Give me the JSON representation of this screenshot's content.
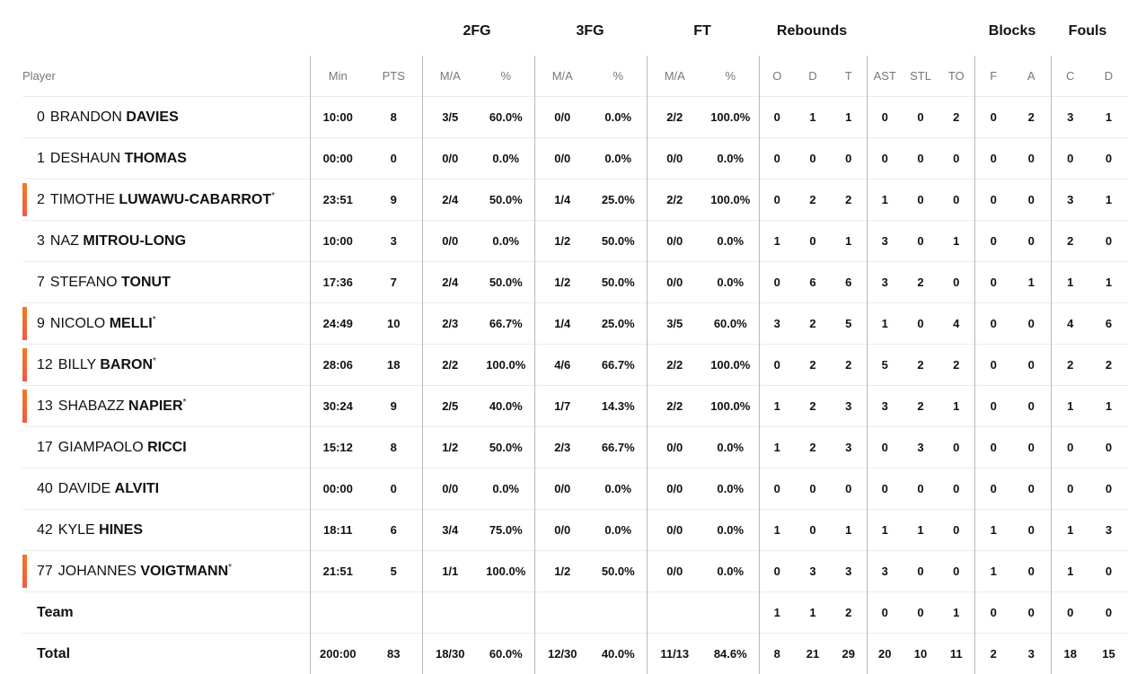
{
  "groups": {
    "fg2": "2FG",
    "fg3": "3FG",
    "ft": "FT",
    "reb": "Rebounds",
    "blk": "Blocks",
    "fouls": "Fouls"
  },
  "columns": [
    "Player",
    "Min",
    "PTS",
    "M/A",
    "%",
    "M/A",
    "%",
    "M/A",
    "%",
    "O",
    "D",
    "T",
    "AST",
    "STL",
    "TO",
    "F",
    "A",
    "C",
    "D"
  ],
  "accent_color": "#f26a30",
  "rows": [
    {
      "num": "0",
      "first": "BRANDON",
      "last": "DAVIES",
      "starter": false,
      "stats": [
        "10:00",
        "8",
        "3/5",
        "60.0%",
        "0/0",
        "0.0%",
        "2/2",
        "100.0%",
        "0",
        "1",
        "1",
        "0",
        "0",
        "2",
        "0",
        "2",
        "3",
        "1"
      ]
    },
    {
      "num": "1",
      "first": "DESHAUN",
      "last": "THOMAS",
      "starter": false,
      "stats": [
        "00:00",
        "0",
        "0/0",
        "0.0%",
        "0/0",
        "0.0%",
        "0/0",
        "0.0%",
        "0",
        "0",
        "0",
        "0",
        "0",
        "0",
        "0",
        "0",
        "0",
        "0"
      ]
    },
    {
      "num": "2",
      "first": "TIMOTHE",
      "last": "LUWAWU-CABARROT",
      "starter": true,
      "stats": [
        "23:51",
        "9",
        "2/4",
        "50.0%",
        "1/4",
        "25.0%",
        "2/2",
        "100.0%",
        "0",
        "2",
        "2",
        "1",
        "0",
        "0",
        "0",
        "0",
        "3",
        "1"
      ]
    },
    {
      "num": "3",
      "first": "NAZ",
      "last": "MITROU-LONG",
      "starter": false,
      "stats": [
        "10:00",
        "3",
        "0/0",
        "0.0%",
        "1/2",
        "50.0%",
        "0/0",
        "0.0%",
        "1",
        "0",
        "1",
        "3",
        "0",
        "1",
        "0",
        "0",
        "2",
        "0"
      ]
    },
    {
      "num": "7",
      "first": "STEFANO",
      "last": "TONUT",
      "starter": false,
      "stats": [
        "17:36",
        "7",
        "2/4",
        "50.0%",
        "1/2",
        "50.0%",
        "0/0",
        "0.0%",
        "0",
        "6",
        "6",
        "3",
        "2",
        "0",
        "0",
        "1",
        "1",
        "1"
      ]
    },
    {
      "num": "9",
      "first": "NICOLO",
      "last": "MELLI",
      "starter": true,
      "stats": [
        "24:49",
        "10",
        "2/3",
        "66.7%",
        "1/4",
        "25.0%",
        "3/5",
        "60.0%",
        "3",
        "2",
        "5",
        "1",
        "0",
        "4",
        "0",
        "0",
        "4",
        "6"
      ]
    },
    {
      "num": "12",
      "first": "BILLY",
      "last": "BARON",
      "starter": true,
      "stats": [
        "28:06",
        "18",
        "2/2",
        "100.0%",
        "4/6",
        "66.7%",
        "2/2",
        "100.0%",
        "0",
        "2",
        "2",
        "5",
        "2",
        "2",
        "0",
        "0",
        "2",
        "2"
      ]
    },
    {
      "num": "13",
      "first": "SHABAZZ",
      "last": "NAPIER",
      "starter": true,
      "stats": [
        "30:24",
        "9",
        "2/5",
        "40.0%",
        "1/7",
        "14.3%",
        "2/2",
        "100.0%",
        "1",
        "2",
        "3",
        "3",
        "2",
        "1",
        "0",
        "0",
        "1",
        "1"
      ]
    },
    {
      "num": "17",
      "first": "GIAMPAOLO",
      "last": "RICCI",
      "starter": false,
      "stats": [
        "15:12",
        "8",
        "1/2",
        "50.0%",
        "2/3",
        "66.7%",
        "0/0",
        "0.0%",
        "1",
        "2",
        "3",
        "0",
        "3",
        "0",
        "0",
        "0",
        "0",
        "0"
      ]
    },
    {
      "num": "40",
      "first": "DAVIDE",
      "last": "ALVITI",
      "starter": false,
      "stats": [
        "00:00",
        "0",
        "0/0",
        "0.0%",
        "0/0",
        "0.0%",
        "0/0",
        "0.0%",
        "0",
        "0",
        "0",
        "0",
        "0",
        "0",
        "0",
        "0",
        "0",
        "0"
      ]
    },
    {
      "num": "42",
      "first": "KYLE",
      "last": "HINES",
      "starter": false,
      "stats": [
        "18:11",
        "6",
        "3/4",
        "75.0%",
        "0/0",
        "0.0%",
        "0/0",
        "0.0%",
        "1",
        "0",
        "1",
        "1",
        "1",
        "0",
        "1",
        "0",
        "1",
        "3"
      ]
    },
    {
      "num": "77",
      "first": "JOHANNES",
      "last": "VOIGTMANN",
      "starter": true,
      "stats": [
        "21:51",
        "5",
        "1/1",
        "100.0%",
        "1/2",
        "50.0%",
        "0/0",
        "0.0%",
        "0",
        "3",
        "3",
        "3",
        "0",
        "0",
        "1",
        "0",
        "1",
        "0"
      ]
    }
  ],
  "team": {
    "label": "Team",
    "stats": [
      "",
      "",
      "",
      "",
      "",
      "",
      "",
      "",
      "1",
      "1",
      "2",
      "0",
      "0",
      "1",
      "0",
      "0",
      "0",
      "0"
    ]
  },
  "total": {
    "label": "Total",
    "stats": [
      "200:00",
      "83",
      "18/30",
      "60.0%",
      "12/30",
      "40.0%",
      "11/13",
      "84.6%",
      "8",
      "21",
      "29",
      "20",
      "10",
      "11",
      "2",
      "3",
      "18",
      "15"
    ]
  }
}
